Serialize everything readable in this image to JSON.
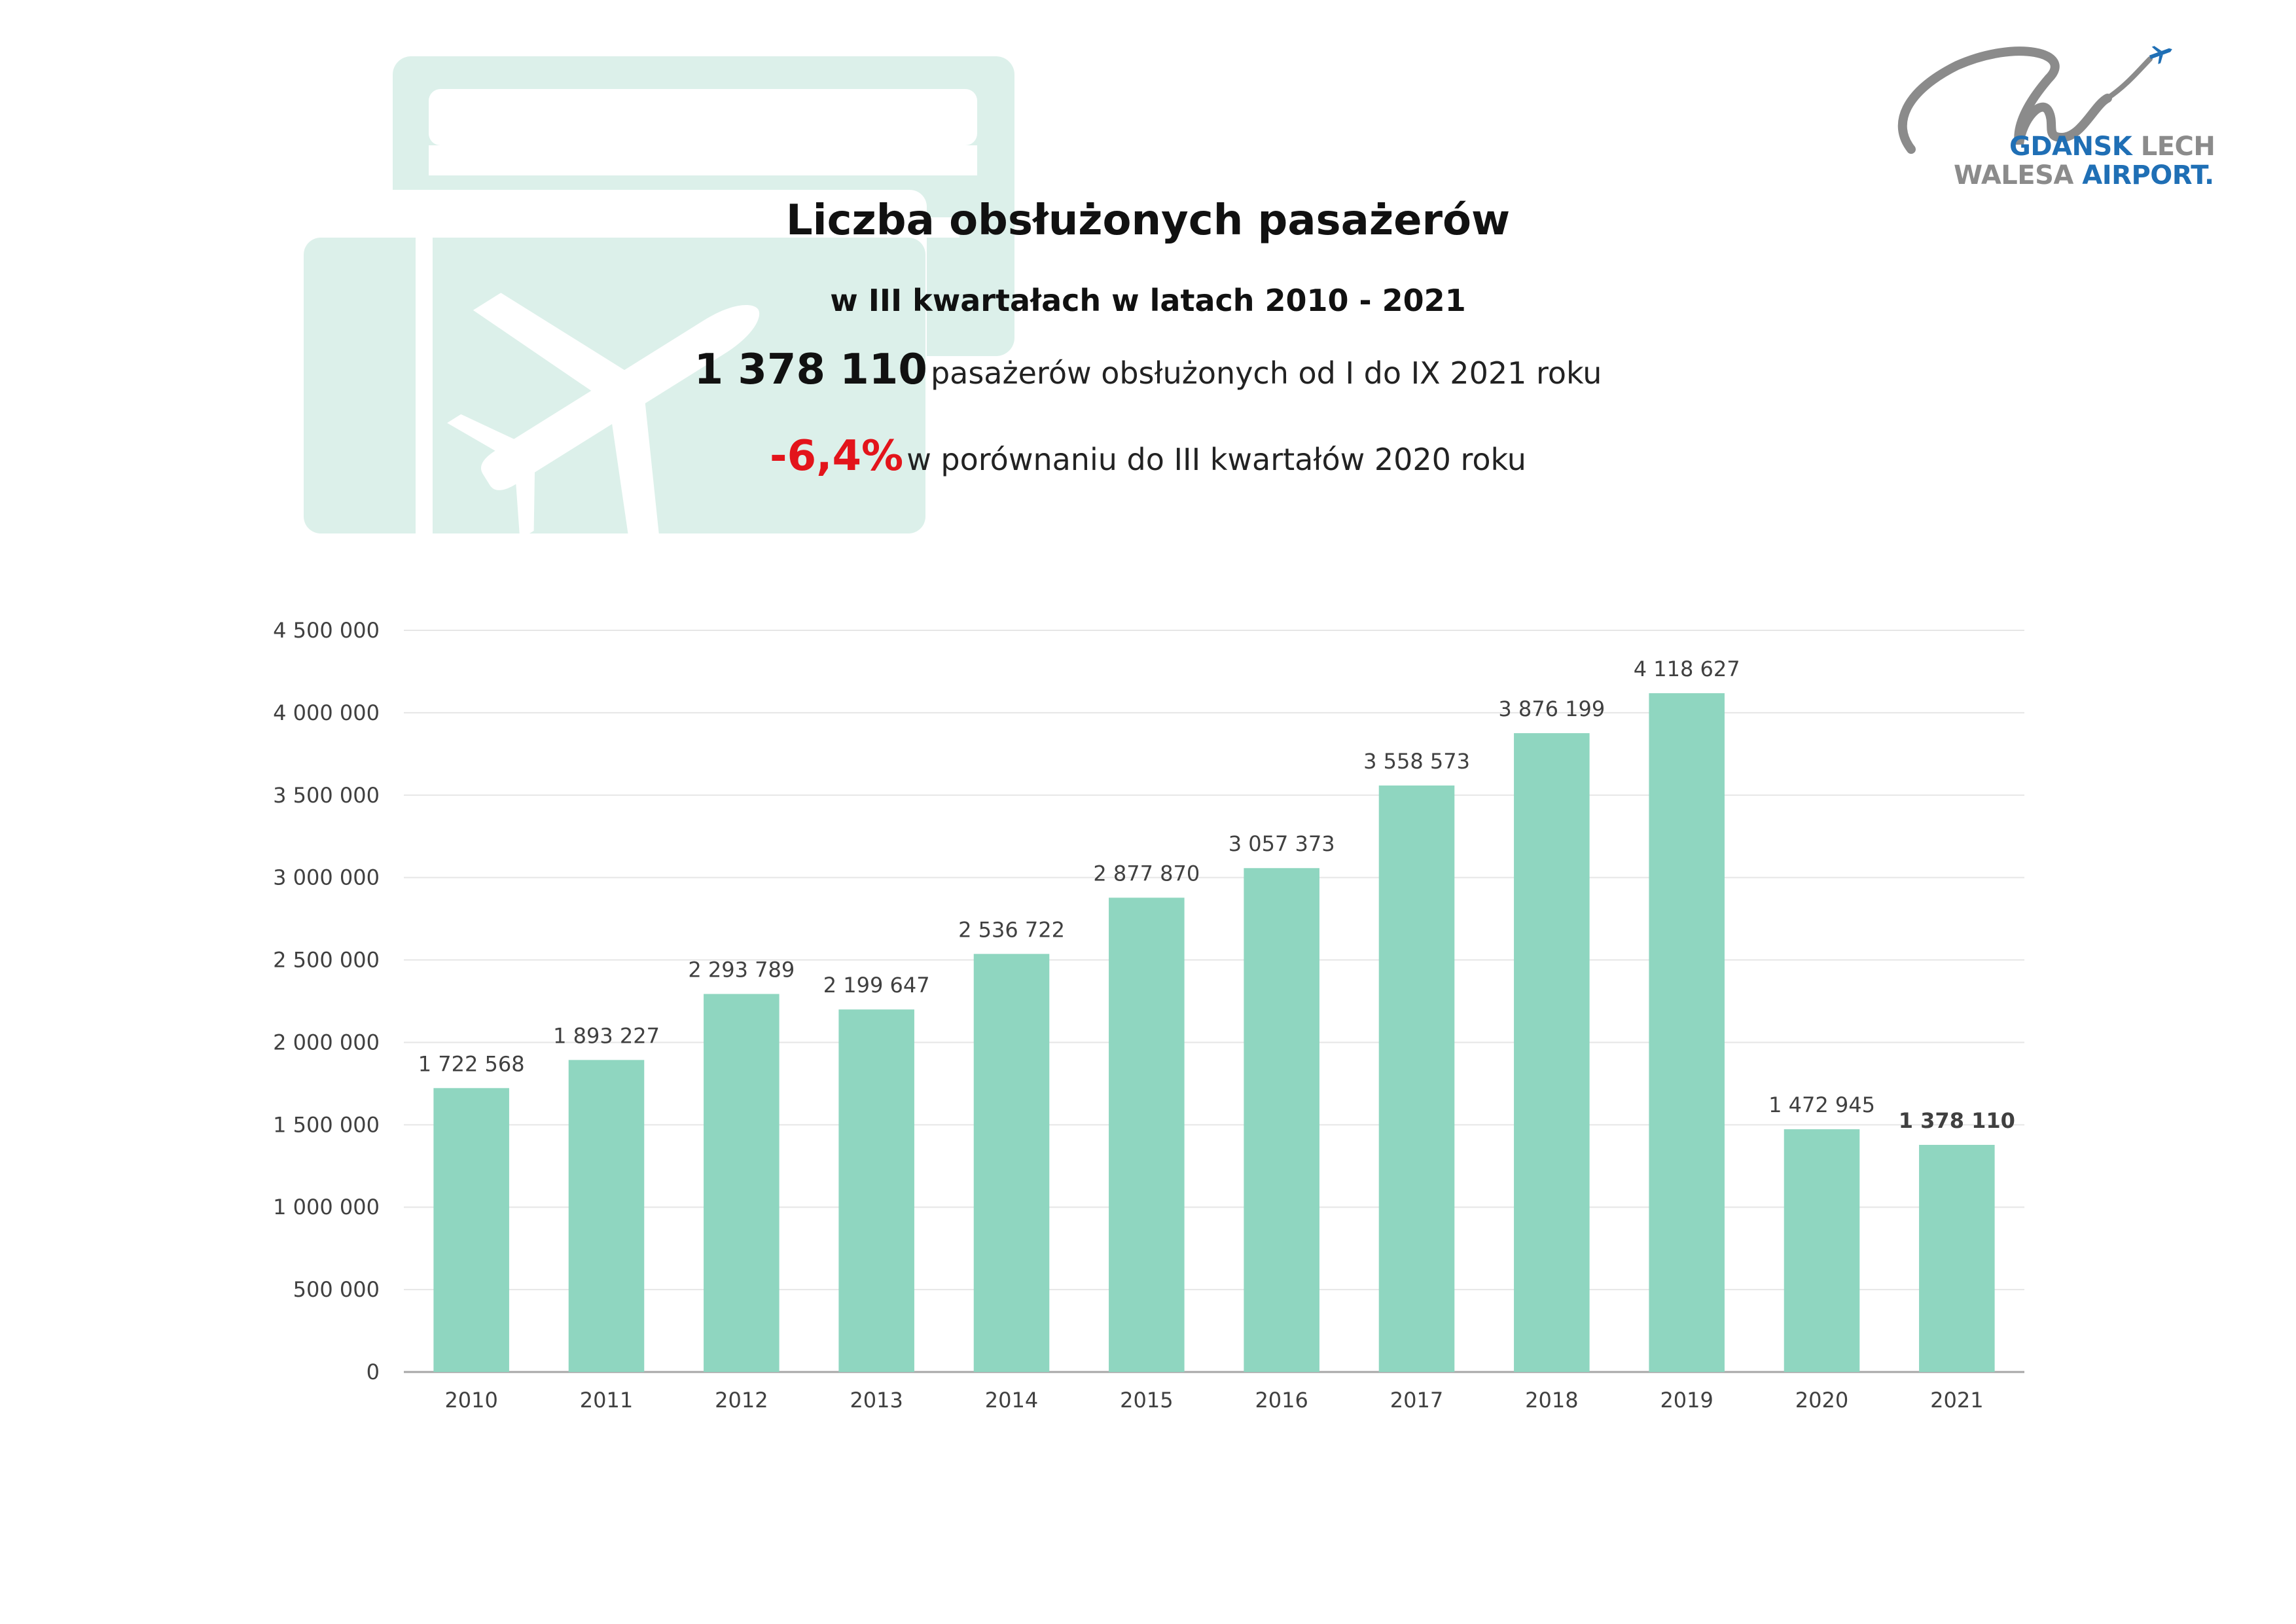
{
  "header": {
    "title": "Liczba obsłużonych pasażerów",
    "subtitle": "w III kwartałach w latach 2010 - 2021",
    "stat1_number": "1 378 110",
    "stat1_text": "pasażerów obsłużonych od I do IX 2021 roku",
    "stat2_number": "-6,4%",
    "stat2_text": "w porównaniu do III kwartałów 2020 roku"
  },
  "logo": {
    "line1_a": "GDANSK",
    "line1_b": "LECH",
    "line2_a": "WALESA",
    "line2_b": "AIRPORT."
  },
  "colors": {
    "bar": "#8fd6c0",
    "ticket": "#dcf0ea",
    "accent_red": "#e3141b",
    "logo_blue": "#1f6fb5",
    "logo_grey": "#8b8b8b"
  },
  "chart_data": {
    "type": "bar",
    "title": "",
    "xlabel": "",
    "ylabel": "",
    "ylim": [
      0,
      4500000
    ],
    "yticks": [
      0,
      500000,
      1000000,
      1500000,
      2000000,
      2500000,
      3000000,
      3500000,
      4000000,
      4500000
    ],
    "ytick_labels": [
      "0",
      "500 000",
      "1 000 000",
      "1 500 000",
      "2 000 000",
      "2 500 000",
      "3 000 000",
      "3 500 000",
      "4 000 000",
      "4 500 000"
    ],
    "categories": [
      "2010",
      "2011",
      "2012",
      "2013",
      "2014",
      "2015",
      "2016",
      "2017",
      "2018",
      "2019",
      "2020",
      "2021"
    ],
    "values": [
      1722568,
      1893227,
      2293789,
      2199647,
      2536722,
      2877870,
      3057373,
      3558573,
      3876199,
      4118627,
      1472945,
      1378110
    ],
    "value_labels": [
      "1 722 568",
      "1 893 227",
      "2 293 789",
      "2 199 647",
      "2 536 722",
      "2 877 870",
      "3 057 373",
      "3 558 573",
      "3 876 199",
      "4 118 627",
      "1 472 945",
      "1 378 110"
    ],
    "bold_labels": [
      "2021"
    ],
    "grid": true,
    "legend": "none"
  }
}
